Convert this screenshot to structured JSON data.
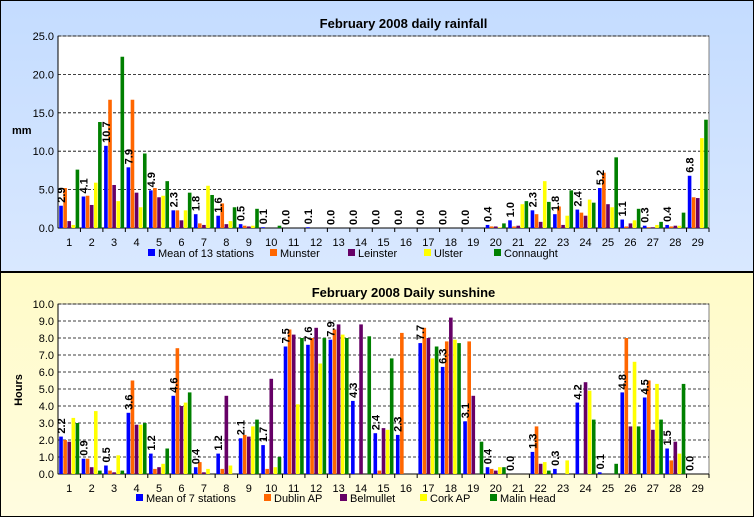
{
  "chart_data": [
    {
      "type": "bar",
      "title": "February 2008 daily rainfall",
      "ylabel": "mm",
      "ylim": [
        0,
        25
      ],
      "yticks": [
        "0.0",
        "5.0",
        "10.0",
        "15.0",
        "20.0",
        "25.0"
      ],
      "categories": [
        "1",
        "2",
        "3",
        "4",
        "5",
        "6",
        "7",
        "8",
        "9",
        "10",
        "11",
        "12",
        "13",
        "14",
        "15",
        "16",
        "17",
        "18",
        "19",
        "20",
        "21",
        "22",
        "23",
        "24",
        "25",
        "26",
        "27",
        "28",
        "29"
      ],
      "grid": true,
      "legend": "bottom",
      "data_labels_series": 0,
      "data_labels": [
        "2.9",
        "4.1",
        "10.7",
        "7.9",
        "4.9",
        "2.3",
        "1.8",
        "1.6",
        "0.5",
        "0.1",
        "0.0",
        "0.1",
        "0.0",
        "0.0",
        "0.0",
        "0.0",
        "0.0",
        "0.0",
        "0.0",
        "0.4",
        "1.0",
        "2.3",
        "1.8",
        "2.4",
        "5.2",
        "1.1",
        "0.3",
        "0.4",
        "6.8"
      ],
      "series": [
        {
          "name": "Mean of 13 stations",
          "color": "#0000ff",
          "values": [
            2.9,
            4.1,
            10.7,
            7.9,
            4.9,
            2.3,
            1.8,
            1.6,
            0.5,
            0.1,
            0,
            0.1,
            0,
            0,
            0,
            0,
            0,
            0,
            0,
            0.4,
            1.0,
            2.3,
            1.8,
            2.4,
            5.2,
            1.1,
            0.3,
            0.4,
            6.8
          ]
        },
        {
          "name": "Munster",
          "color": "#ff6600",
          "values": [
            5.2,
            4.2,
            16.7,
            16.7,
            5.2,
            2.3,
            0.6,
            3.2,
            0.3,
            0,
            0,
            0,
            0,
            0,
            0,
            0,
            0,
            0,
            0,
            0.2,
            0.2,
            1.8,
            2.8,
            2.0,
            7.2,
            0.2,
            0.1,
            0.2,
            4.0
          ]
        },
        {
          "name": "Leinster",
          "color": "#660066",
          "values": [
            0.9,
            3.0,
            5.6,
            4.6,
            4.0,
            1.0,
            0.4,
            0.5,
            0.2,
            0,
            0,
            0,
            0,
            0,
            0,
            0,
            0,
            0,
            0,
            0.2,
            0.3,
            0.8,
            0.4,
            1.6,
            3.1,
            0.6,
            0.1,
            0.3,
            3.9
          ]
        },
        {
          "name": "Ulster",
          "color": "#ffff00",
          "values": [
            0.4,
            5.9,
            3.5,
            2.7,
            4.2,
            2.3,
            5.5,
            0.9,
            0.3,
            0,
            0,
            0,
            0,
            0,
            0,
            0,
            0,
            0,
            0,
            0.1,
            3.1,
            6.1,
            1.6,
            3.7,
            2.7,
            1.0,
            0.4,
            0.3,
            11.7
          ]
        },
        {
          "name": "Connaught",
          "color": "#008000",
          "values": [
            7.6,
            13.8,
            22.3,
            9.7,
            6.1,
            4.6,
            4.3,
            2.7,
            2.5,
            0.3,
            0,
            0,
            0,
            0,
            0,
            0,
            0,
            0,
            0,
            0.6,
            3.5,
            3.4,
            4.9,
            3.3,
            9.2,
            2.5,
            0.8,
            2.0,
            14.1
          ]
        }
      ]
    },
    {
      "type": "bar",
      "title": "February 2008 Daily sunshine",
      "ylabel": "Hours",
      "ylim": [
        0,
        10
      ],
      "yticks": [
        "0.0",
        "1.0",
        "2.0",
        "3.0",
        "4.0",
        "5.0",
        "6.0",
        "7.0",
        "8.0",
        "9.0",
        "10.0"
      ],
      "categories": [
        "1",
        "2",
        "3",
        "4",
        "5",
        "6",
        "7",
        "8",
        "9",
        "10",
        "11",
        "12",
        "13",
        "14",
        "15",
        "16",
        "17",
        "18",
        "19",
        "20",
        "21",
        "22",
        "23",
        "24",
        "25",
        "26",
        "27",
        "28",
        "29"
      ],
      "grid": true,
      "legend": "bottom",
      "data_labels_series": 0,
      "data_labels": [
        "2.2",
        "0.9",
        "0.5",
        "3.6",
        "1.2",
        "4.6",
        "0.4",
        "1.2",
        "2.1",
        "1.7",
        "7.5",
        "7.6",
        "7.9",
        "4.3",
        "2.4",
        "2.3",
        "7.7",
        "6.3",
        "3.1",
        "0.4",
        "0.0",
        "1.3",
        "0.3",
        "4.2",
        "0.1",
        "4.8",
        "4.5",
        "1.5",
        "0.0"
      ],
      "series": [
        {
          "name": "Mean of 7 stations",
          "color": "#0000ff",
          "values": [
            2.2,
            0.9,
            0.5,
            3.6,
            1.2,
            4.6,
            0.4,
            1.2,
            2.1,
            1.7,
            7.5,
            7.6,
            7.9,
            4.3,
            2.4,
            2.3,
            7.7,
            6.3,
            3.1,
            0.4,
            0,
            1.3,
            0.3,
            4.2,
            0.1,
            4.8,
            4.5,
            1.5,
            0
          ]
        },
        {
          "name": "Dublin AP",
          "color": "#ff6600",
          "values": [
            2.0,
            0.9,
            0.2,
            5.5,
            0.3,
            7.4,
            0.7,
            0.3,
            2.3,
            0.3,
            8.5,
            8.0,
            8.5,
            0,
            0.2,
            8.3,
            8.6,
            7.8,
            7.8,
            0.3,
            0,
            2.8,
            0,
            0,
            0,
            8.0,
            5.5,
            0.8,
            0
          ]
        },
        {
          "name": "Belmullet",
          "color": "#660066",
          "values": [
            1.9,
            0.4,
            0.1,
            2.9,
            0.4,
            4.0,
            0.1,
            4.6,
            2.2,
            5.6,
            8.2,
            8.6,
            8.8,
            8.8,
            2.7,
            0,
            8.0,
            9.2,
            4.6,
            0.2,
            0,
            0.6,
            0,
            5.4,
            0,
            2.8,
            2.6,
            1.9,
            0
          ]
        },
        {
          "name": "Cork AP",
          "color": "#ffff00",
          "values": [
            3.3,
            3.7,
            1.1,
            2.9,
            0.6,
            4.2,
            0.3,
            0.5,
            2.8,
            0.4,
            4.1,
            6.5,
            8.2,
            0,
            2.6,
            0,
            6.8,
            7.9,
            0,
            0.4,
            0,
            0.7,
            0.8,
            4.9,
            0,
            6.6,
            5.3,
            1.2,
            0
          ]
        },
        {
          "name": "Malin Head",
          "color": "#008000",
          "values": [
            3.0,
            0.2,
            0.2,
            3.0,
            1.5,
            4.8,
            0,
            0,
            3.2,
            1.0,
            8.0,
            8.0,
            8.0,
            8.1,
            6.8,
            0,
            7.5,
            7.7,
            1.9,
            0.4,
            0,
            0.2,
            0,
            3.2,
            0.6,
            2.8,
            3.2,
            5.3,
            0
          ]
        }
      ]
    }
  ]
}
